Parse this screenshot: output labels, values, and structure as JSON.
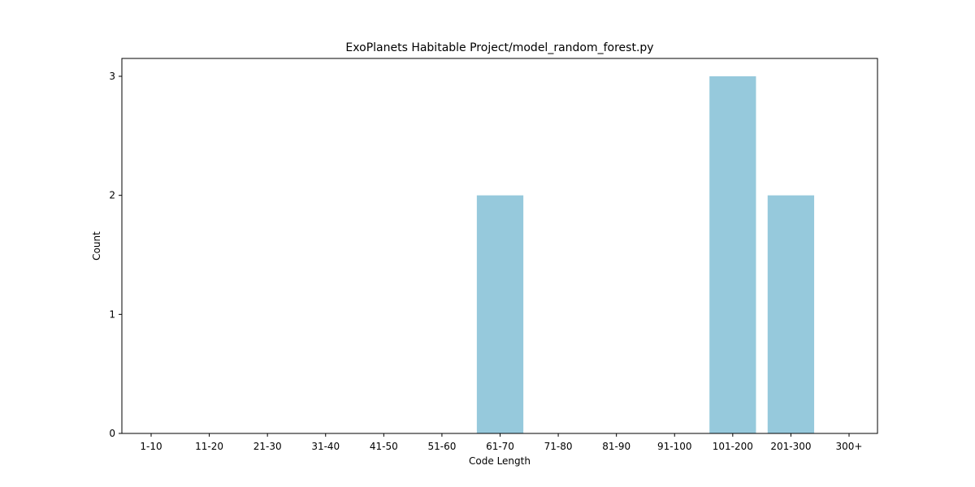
{
  "chart_data": {
    "type": "bar",
    "title": "ExoPlanets Habitable Project/model_random_forest.py",
    "xlabel": "Code Length",
    "ylabel": "Count",
    "categories": [
      "1-10",
      "11-20",
      "21-30",
      "31-40",
      "41-50",
      "51-60",
      "61-70",
      "71-80",
      "81-90",
      "91-100",
      "101-200",
      "201-300",
      "300+"
    ],
    "values": [
      0,
      0,
      0,
      0,
      0,
      0,
      2,
      0,
      0,
      0,
      3,
      2,
      0
    ],
    "ylim": [
      0,
      3
    ],
    "yticks": [
      0,
      1,
      2,
      3
    ],
    "bar_color": "#96c9dc",
    "grid": false,
    "legend": "none"
  }
}
